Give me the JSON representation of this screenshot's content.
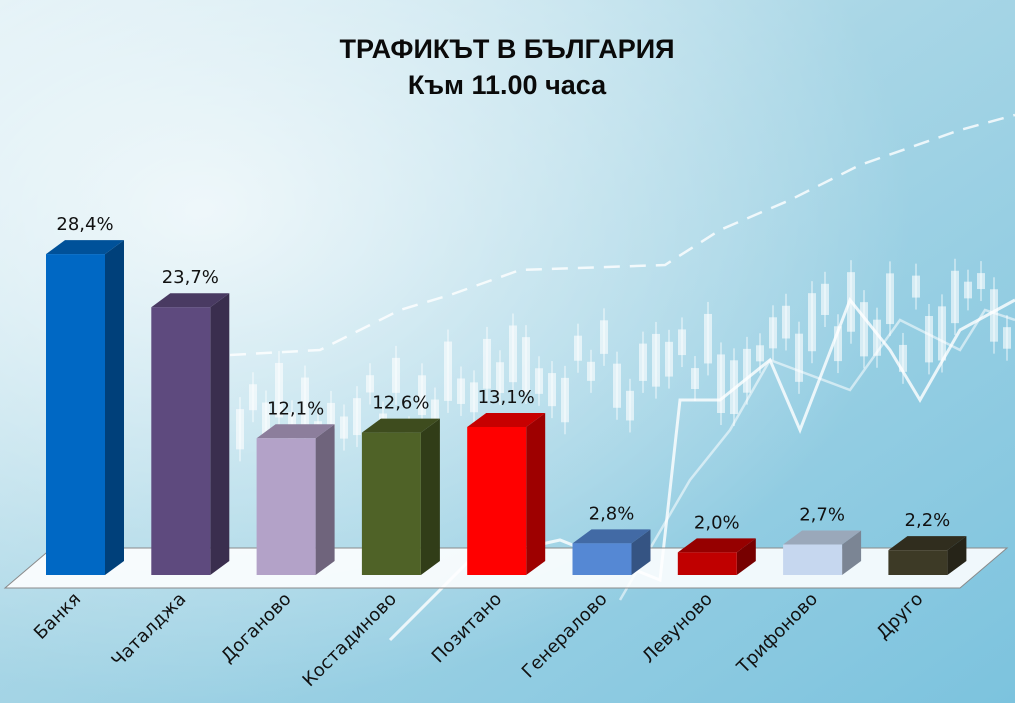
{
  "chart_data": {
    "type": "bar",
    "title": "ТРАФИКЪТ В БЪЛГАРИЯ",
    "subtitle": "Към 11.00 часа",
    "categories": [
      "Банкя",
      "Чаталджа",
      "Доганово",
      "Костадиново",
      "Позитано",
      "Генералово",
      "Левуново",
      "Трифоново",
      "Друго"
    ],
    "values": [
      28.4,
      23.7,
      12.1,
      12.6,
      13.1,
      2.8,
      2.0,
      2.7,
      2.2
    ],
    "value_labels": [
      "28,4%",
      "23,7%",
      "12,1%",
      "12,6%",
      "13,1%",
      "2,8%",
      "2,0%",
      "2,7%",
      "2,2%"
    ],
    "colors": [
      "#0068c4",
      "#5e4a7e",
      "#b3a2c8",
      "#4f6227",
      "#ff0000",
      "#5588d4",
      "#c00000",
      "#c6d7ef",
      "#3d3a26"
    ],
    "ylim": [
      0,
      30
    ],
    "grid": false,
    "legend": "none",
    "style": "3d-column"
  }
}
